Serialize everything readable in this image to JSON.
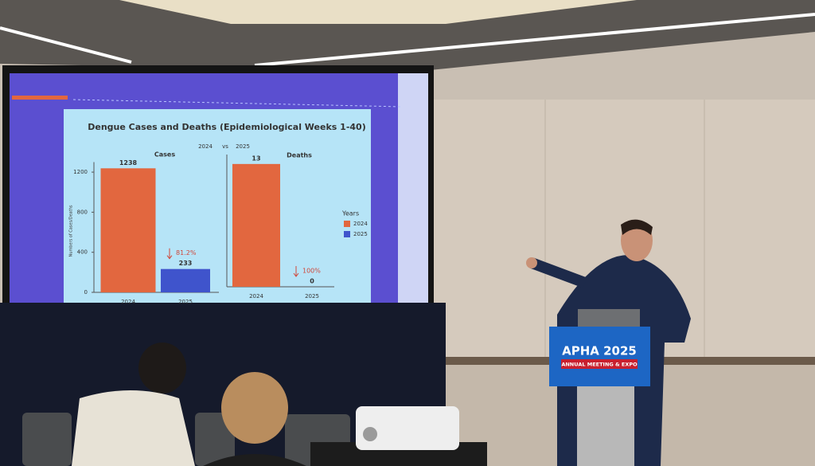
{
  "slide": {
    "title": "Dengue Cases and Deaths (Epidemiological Weeks 1-40)",
    "comparison": [
      "2024",
      "vs",
      "2025"
    ],
    "ylabel": "Numbers of Cases/Deaths",
    "legend": {
      "title": "Years",
      "labels": [
        "2024",
        "2025"
      ],
      "colors": [
        "#e2673f",
        "#3f54cc"
      ]
    }
  },
  "chart_data": [
    {
      "type": "bar",
      "title": "Cases",
      "categories": [
        "2024",
        "2025"
      ],
      "values": [
        1238,
        233
      ],
      "colors": [
        "#e2673f",
        "#3f54cc"
      ],
      "ylim": [
        0,
        1300
      ],
      "yticks": [
        0,
        400,
        800,
        1200
      ],
      "annotation": "81.2%"
    },
    {
      "type": "bar",
      "title": "Deaths",
      "categories": [
        "2024",
        "2025"
      ],
      "values": [
        13,
        0
      ],
      "colors": [
        "#e2673f",
        "#3f54cc"
      ],
      "ylim": [
        0,
        14
      ],
      "annotation": "100%"
    }
  ],
  "podium": {
    "title": "APHA 2025",
    "subtitle": "ANNUAL MEETING & EXPO"
  }
}
